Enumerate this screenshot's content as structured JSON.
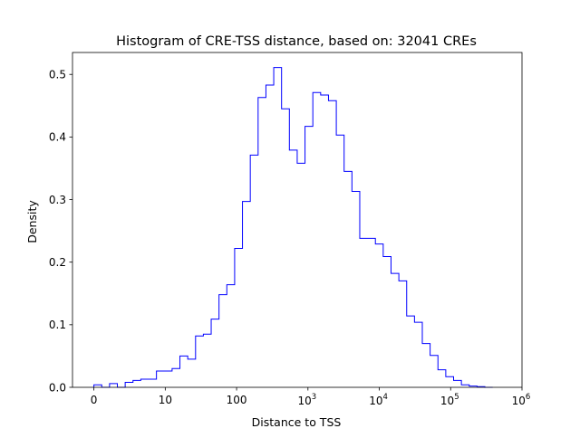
{
  "chart_data": {
    "type": "histogram",
    "title": "Histogram of CRE-TSS distance, based on: 32041 CREs",
    "xlabel": "Distance to TSS",
    "ylabel": "Density",
    "x_scale": "log10(distance + 1)",
    "xlim": [
      -0.3,
      6.0
    ],
    "ylim": [
      0,
      0.535
    ],
    "x_ticks": [
      {
        "value": 0,
        "label": "0",
        "base": "",
        "exp": ""
      },
      {
        "value": 1,
        "label": "10",
        "base": "",
        "exp": ""
      },
      {
        "value": 2,
        "label": "100",
        "base": "",
        "exp": ""
      },
      {
        "value": 3,
        "label": "",
        "base": "10",
        "exp": "3"
      },
      {
        "value": 4,
        "label": "",
        "base": "10",
        "exp": "4"
      },
      {
        "value": 5,
        "label": "",
        "base": "10",
        "exp": "5"
      },
      {
        "value": 6,
        "label": "",
        "base": "10",
        "exp": "6"
      }
    ],
    "y_ticks": [
      {
        "value": 0.0,
        "label": "0.0"
      },
      {
        "value": 0.1,
        "label": "0.1"
      },
      {
        "value": 0.2,
        "label": "0.2"
      },
      {
        "value": 0.3,
        "label": "0.3"
      },
      {
        "value": 0.4,
        "label": "0.4"
      },
      {
        "value": 0.5,
        "label": "0.5"
      }
    ],
    "bin_edges": [
      0.0,
      0.1096,
      0.2192,
      0.3288,
      0.4384,
      0.548,
      0.6575,
      0.7671,
      0.8767,
      0.9863,
      1.0959,
      1.2055,
      1.3151,
      1.4247,
      1.5342,
      1.6438,
      1.7534,
      1.863,
      1.9726,
      2.0822,
      2.1918,
      2.3014,
      2.411,
      2.5205,
      2.6301,
      2.7397,
      2.8493,
      2.9589,
      3.0685,
      3.1781,
      3.2877,
      3.3973,
      3.5068,
      3.6164,
      3.726,
      3.8356,
      3.9452,
      4.0548,
      4.1644,
      4.274,
      4.3836,
      4.4932,
      4.6027,
      4.7123,
      4.8219,
      4.9315,
      5.0411,
      5.1507,
      5.2603,
      5.3699,
      5.4795,
      5.5891
    ],
    "density": [
      0.004,
      0.0,
      0.006,
      0.0,
      0.008,
      0.011,
      0.013,
      0.013,
      0.026,
      0.026,
      0.03,
      0.05,
      0.045,
      0.082,
      0.085,
      0.109,
      0.148,
      0.164,
      0.222,
      0.297,
      0.371,
      0.463,
      0.483,
      0.511,
      0.445,
      0.379,
      0.358,
      0.417,
      0.471,
      0.467,
      0.458,
      0.403,
      0.345,
      0.313,
      0.238,
      0.238,
      0.229,
      0.209,
      0.182,
      0.17,
      0.114,
      0.104,
      0.07,
      0.051,
      0.028,
      0.017,
      0.011,
      0.004,
      0.002,
      0.001,
      0.0
    ],
    "line_color": "#0000ff"
  }
}
